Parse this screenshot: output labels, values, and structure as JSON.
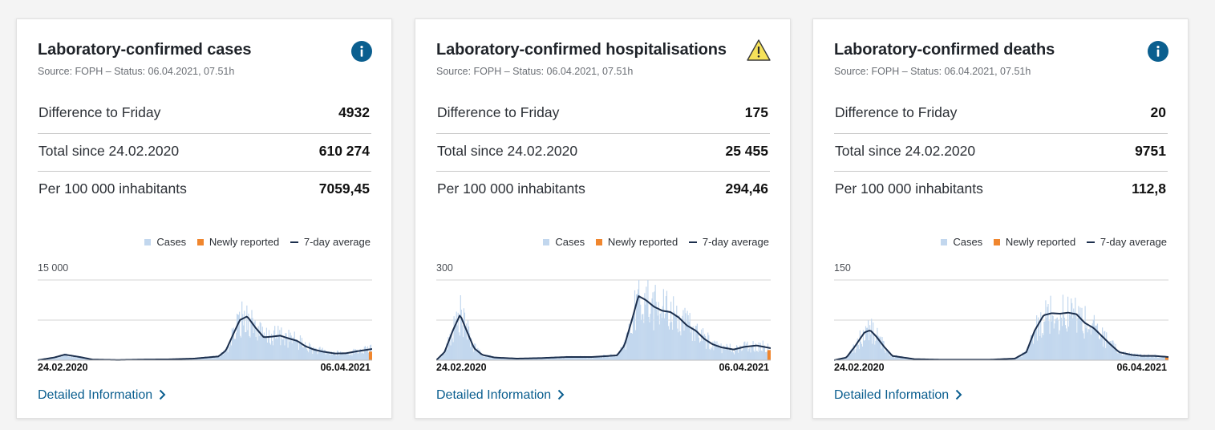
{
  "cards": [
    {
      "title": "Laboratory-confirmed cases",
      "source": "Source: FOPH – Status: 06.04.2021, 07.51h",
      "icon": "info-icon",
      "stats": [
        {
          "label": "Difference to Friday",
          "value": "4932"
        },
        {
          "label": "Total since 24.02.2020",
          "value": "610 274"
        },
        {
          "label": "Per 100 000 inhabitants",
          "value": "7059,45"
        }
      ],
      "legend": {
        "cases": "Cases",
        "newly": "Newly reported",
        "avg": "7-day average"
      },
      "y_tick": "15 000",
      "x_start": "24.02.2020",
      "x_end": "06.04.2021",
      "link": "Detailed Information"
    },
    {
      "title": "Laboratory-confirmed hospitalisations",
      "source": "Source: FOPH – Status: 06.04.2021, 07.51h",
      "icon": "warning-icon",
      "stats": [
        {
          "label": "Difference to Friday",
          "value": "175"
        },
        {
          "label": "Total since 24.02.2020",
          "value": "25 455"
        },
        {
          "label": "Per 100 000 inhabitants",
          "value": "294,46"
        }
      ],
      "legend": {
        "cases": "Cases",
        "newly": "Newly reported",
        "avg": "7-day average"
      },
      "y_tick": "300",
      "x_start": "24.02.2020",
      "x_end": "06.04.2021",
      "link": "Detailed Information"
    },
    {
      "title": "Laboratory-confirmed deaths",
      "source": "Source: FOPH – Status: 06.04.2021, 07.51h",
      "icon": "info-icon",
      "stats": [
        {
          "label": "Difference to Friday",
          "value": "20"
        },
        {
          "label": "Total since 24.02.2020",
          "value": "9751"
        },
        {
          "label": "Per 100 000 inhabitants",
          "value": "112,8"
        }
      ],
      "legend": {
        "cases": "Cases",
        "newly": "Newly reported",
        "avg": "7-day average"
      },
      "y_tick": "150",
      "x_start": "24.02.2020",
      "x_end": "06.04.2021",
      "link": "Detailed Information"
    }
  ],
  "colors": {
    "bars": "#c2d7ee",
    "newly_reported": "#f0862e",
    "average_line": "#1c2f4d",
    "link": "#0a5e8f",
    "info": "#0b5f8f",
    "warning": "#f6e25a"
  },
  "chart_data": [
    {
      "type": "area",
      "title": "Laboratory-confirmed cases",
      "xlim": [
        "24.02.2020",
        "06.04.2021"
      ],
      "ylim": [
        0,
        15000
      ],
      "gridlines": [
        7500,
        15000
      ],
      "series": [
        {
          "name": "7-day average",
          "x": [
            "24.02.2020",
            "15.03.2020",
            "28.03.2020",
            "15.04.2020",
            "01.05.2020",
            "01.06.2020",
            "01.07.2020",
            "01.08.2020",
            "01.09.2020",
            "01.10.2020",
            "10.10.2020",
            "20.10.2020",
            "27.10.2020",
            "05.11.2020",
            "15.11.2020",
            "25.11.2020",
            "05.12.2020",
            "15.12.2020",
            "25.12.2020",
            "05.01.2021",
            "15.01.2021",
            "25.01.2021",
            "05.02.2021",
            "20.02.2021",
            "05.03.2021",
            "20.03.2021",
            "06.04.2021"
          ],
          "values": [
            0,
            500,
            1050,
            600,
            120,
            40,
            120,
            160,
            300,
            700,
            1800,
            5200,
            7500,
            8200,
            6100,
            4300,
            4400,
            4600,
            4100,
            3600,
            2600,
            2000,
            1600,
            1250,
            1300,
            1700,
            2100
          ]
        }
      ],
      "newly_reported_x": [
        "02.04.2021",
        "06.04.2021"
      ]
    },
    {
      "type": "area",
      "title": "Laboratory-confirmed hospitalisations",
      "xlim": [
        "24.02.2020",
        "06.04.2021"
      ],
      "ylim": [
        0,
        300
      ],
      "gridlines": [
        150,
        300
      ],
      "series": [
        {
          "name": "7-day average",
          "x": [
            "24.02.2020",
            "05.03.2020",
            "15.03.2020",
            "24.03.2020",
            "01.04.2020",
            "10.04.2020",
            "20.04.2020",
            "05.05.2020",
            "01.06.2020",
            "01.07.2020",
            "01.08.2020",
            "01.09.2020",
            "01.10.2020",
            "10.10.2020",
            "20.10.2020",
            "27.10.2020",
            "05.11.2020",
            "15.11.2020",
            "25.11.2020",
            "05.12.2020",
            "15.12.2020",
            "25.12.2020",
            "05.01.2021",
            "15.01.2021",
            "25.01.2021",
            "05.02.2021",
            "20.02.2021",
            "05.03.2021",
            "20.03.2021",
            "06.04.2021"
          ],
          "values": [
            0,
            30,
            110,
            170,
            110,
            45,
            20,
            10,
            6,
            8,
            12,
            12,
            18,
            55,
            160,
            240,
            225,
            200,
            185,
            180,
            160,
            130,
            110,
            80,
            60,
            48,
            40,
            50,
            55,
            45
          ]
        }
      ],
      "newly_reported_x": [
        "02.04.2021",
        "06.04.2021"
      ]
    },
    {
      "type": "area",
      "title": "Laboratory-confirmed deaths",
      "xlim": [
        "24.02.2020",
        "06.04.2021"
      ],
      "ylim": [
        0,
        150
      ],
      "gridlines": [
        75,
        150
      ],
      "series": [
        {
          "name": "7-day average",
          "x": [
            "24.02.2020",
            "10.03.2020",
            "20.03.2020",
            "01.04.2020",
            "08.04.2020",
            "15.04.2020",
            "25.04.2020",
            "05.05.2020",
            "01.06.2020",
            "01.07.2020",
            "01.08.2020",
            "01.09.2020",
            "01.10.2020",
            "15.10.2020",
            "25.10.2020",
            "05.11.2020",
            "15.11.2020",
            "25.11.2020",
            "05.12.2020",
            "15.12.2020",
            "25.12.2020",
            "05.01.2021",
            "15.01.2021",
            "25.01.2021",
            "05.02.2021",
            "20.02.2021",
            "05.03.2021",
            "20.03.2021",
            "06.04.2021"
          ],
          "values": [
            0,
            5,
            25,
            52,
            56,
            45,
            25,
            8,
            2,
            1,
            1,
            1,
            3,
            15,
            55,
            84,
            88,
            87,
            89,
            86,
            70,
            60,
            45,
            30,
            15,
            10,
            8,
            8,
            6
          ]
        }
      ],
      "newly_reported_x": [
        "02.04.2021",
        "06.04.2021"
      ]
    }
  ]
}
